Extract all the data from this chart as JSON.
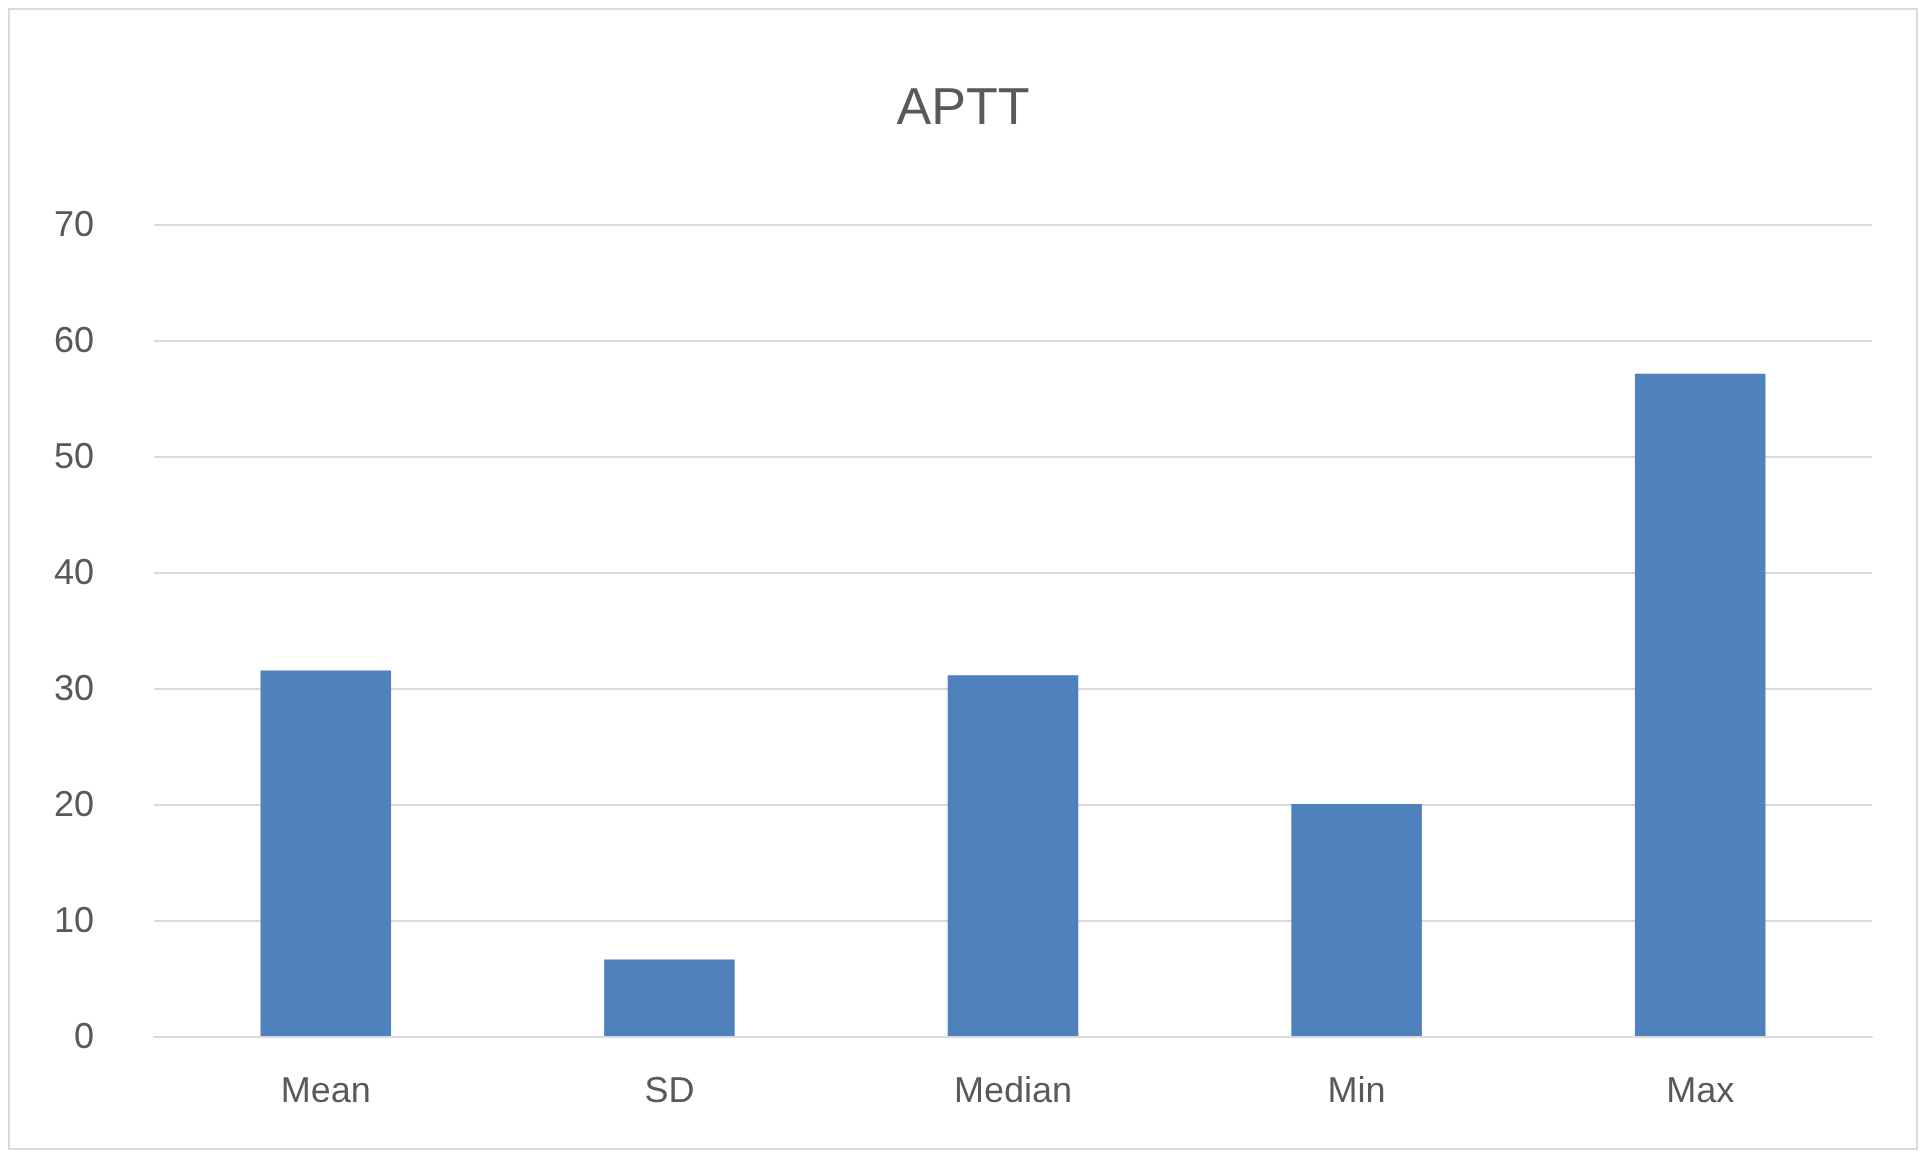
{
  "chart_data": {
    "type": "bar",
    "title": "APTT",
    "categories": [
      "Mean",
      "SD",
      "Median",
      "Min",
      "Max"
    ],
    "values": [
      31.5,
      6.6,
      31.1,
      20.0,
      57.1
    ],
    "color": "#4f81bd",
    "ylim": [
      0,
      70
    ],
    "yticks": [
      0,
      10,
      20,
      30,
      40,
      50,
      60,
      70
    ],
    "grid": "y"
  }
}
